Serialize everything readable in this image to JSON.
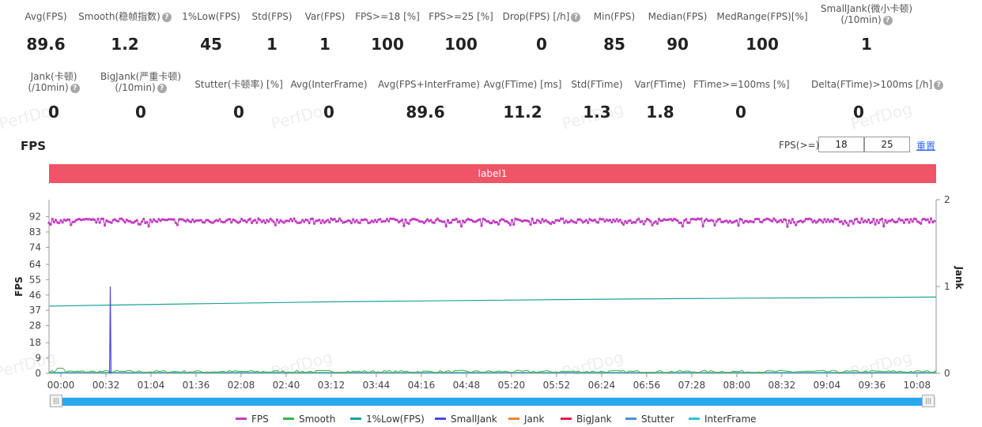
{
  "stats_row1": [
    {
      "label": "Avg(FPS)",
      "value": "89.6",
      "help": false
    },
    {
      "label": "Smooth(稳帧指数)",
      "value": "1.2",
      "help": true
    },
    {
      "label": "1%Low(FPS)",
      "value": "45",
      "help": false
    },
    {
      "label": "Std(FPS)",
      "value": "1",
      "help": false
    },
    {
      "label": "Var(FPS)",
      "value": "1",
      "help": false
    },
    {
      "label": "FPS>=18 [%]",
      "value": "100",
      "help": false
    },
    {
      "label": "FPS>=25 [%]",
      "value": "100",
      "help": false
    },
    {
      "label": "Drop(FPS) [/h]",
      "value": "0",
      "help": true
    },
    {
      "label": "Min(FPS)",
      "value": "85",
      "help": false
    },
    {
      "label": "Median(FPS)",
      "value": "90",
      "help": false
    },
    {
      "label": "MedRange(FPS)[%]",
      "value": "100",
      "help": false
    },
    {
      "label": "SmallJank(微小卡顿)",
      "label2": "(/10min)",
      "value": "1",
      "help": true
    }
  ],
  "stats_row2": [
    {
      "label": "Jank(卡顿)",
      "label2": "(/10min)",
      "value": "0",
      "help": true
    },
    {
      "label": "BigJank(严重卡顿)",
      "label2": "(/10min)",
      "value": "0",
      "help": true
    },
    {
      "label": "Stutter(卡顿率) [%]",
      "value": "0",
      "help": false
    },
    {
      "label": "Avg(InterFrame)",
      "value": "0",
      "help": false
    },
    {
      "label": "Avg(FPS+InterFrame)",
      "value": "89.6",
      "help": false
    },
    {
      "label": "Avg(FTime) [ms]",
      "value": "11.2",
      "help": false
    },
    {
      "label": "Std(FTime)",
      "value": "1.3",
      "help": false
    },
    {
      "label": "Var(FTime)",
      "value": "1.8",
      "help": false
    },
    {
      "label": "FTime>=100ms [%]",
      "value": "0",
      "help": false
    },
    {
      "label": "Delta(FTime)>100ms [/h]",
      "value": "0",
      "help": true
    }
  ],
  "help_glyph": "?",
  "watermark": "PerfDog",
  "section_title": "FPS",
  "threshold": {
    "label": "FPS(>=)",
    "value1": "18",
    "value2": "25",
    "reset": "重置"
  },
  "label_bar": "label1",
  "colors": {
    "fps": "#c23ec2",
    "smooth": "#3cb44b",
    "low1": "#1aa39a",
    "smalljank": "#4a4ae0",
    "jank": "#f58231",
    "bigjank": "#e6194b",
    "stutter": "#4a90d9",
    "interframe": "#2ec4d6",
    "label_bar": "#ef5567",
    "slider": "#29a8f0"
  },
  "chart_data": {
    "type": "line",
    "x_ticks": [
      "00:00",
      "00:32",
      "01:04",
      "01:36",
      "02:08",
      "02:40",
      "03:12",
      "03:44",
      "04:16",
      "04:48",
      "05:20",
      "05:52",
      "06:24",
      "06:56",
      "07:28",
      "08:00",
      "08:32",
      "09:04",
      "09:36",
      "10:08"
    ],
    "x_range_seconds": [
      0,
      630
    ],
    "y_left": {
      "label": "FPS",
      "ticks": [
        0,
        9,
        18,
        28,
        37,
        46,
        55,
        64,
        74,
        83,
        92
      ],
      "range": [
        0,
        102
      ]
    },
    "y_right": {
      "label": "Jank",
      "ticks": [
        0,
        1,
        2
      ],
      "range": [
        0,
        2
      ]
    },
    "series": [
      {
        "name": "FPS",
        "axis": "left",
        "baseline": 90,
        "range": [
          85,
          92
        ]
      },
      {
        "name": "Smooth",
        "axis": "left",
        "baseline": 1,
        "range": [
          0,
          3
        ]
      },
      {
        "name": "1%Low(FPS)",
        "axis": "left",
        "points": [
          [
            0,
            39.5
          ],
          [
            100,
            40.8
          ],
          [
            200,
            42.0
          ],
          [
            300,
            42.8
          ],
          [
            400,
            43.6
          ],
          [
            500,
            44.2
          ],
          [
            630,
            44.8
          ]
        ]
      },
      {
        "name": "SmallJank",
        "axis": "right",
        "points": [
          [
            43,
            0
          ],
          [
            43.5,
            1
          ],
          [
            44,
            0
          ]
        ]
      },
      {
        "name": "Jank",
        "axis": "right",
        "constant": 0
      },
      {
        "name": "BigJank",
        "axis": "right",
        "constant": 0
      },
      {
        "name": "Stutter",
        "axis": "right",
        "constant": 0
      },
      {
        "name": "InterFrame",
        "axis": "left",
        "constant": 0
      }
    ],
    "legend": [
      "FPS",
      "Smooth",
      "1%Low(FPS)",
      "SmallJank",
      "Jank",
      "BigJank",
      "Stutter",
      "InterFrame"
    ],
    "legend_position": "bottom"
  }
}
